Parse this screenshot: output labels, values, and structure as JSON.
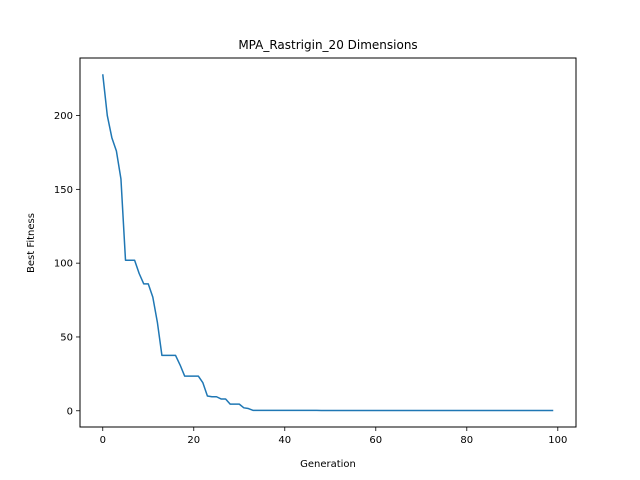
{
  "chart_data": {
    "type": "line",
    "title": "MPA_Rastrigin_20 Dimensions",
    "xlabel": "Generation",
    "ylabel": "Best Fitness",
    "xlim": [
      -5,
      104
    ],
    "ylim": [
      -11,
      239
    ],
    "xticks": [
      0,
      20,
      40,
      60,
      80,
      100
    ],
    "yticks": [
      0,
      50,
      100,
      150,
      200
    ],
    "xtick_labels": [
      "0",
      "20",
      "40",
      "60",
      "80",
      "100"
    ],
    "ytick_labels": [
      "0",
      "50",
      "100",
      "150",
      "200"
    ],
    "grid": false,
    "line_color": "#1f77b4",
    "series": [
      {
        "x": [
          0,
          1,
          2,
          3,
          4,
          5,
          6,
          7,
          8,
          9,
          10,
          11,
          12,
          13,
          14,
          15,
          16,
          17,
          18,
          19,
          20,
          21,
          22,
          23,
          24,
          25,
          26,
          27,
          28,
          29,
          30,
          31,
          32,
          33,
          34,
          35,
          36,
          37,
          38,
          39,
          40,
          41,
          42,
          43,
          44,
          45,
          46,
          47,
          48,
          49,
          50,
          51,
          52,
          53,
          54,
          55,
          56,
          57,
          58,
          59,
          60,
          61,
          62,
          63,
          64,
          65,
          66,
          67,
          68,
          69,
          70,
          71,
          72,
          73,
          74,
          75,
          76,
          77,
          78,
          79,
          80,
          81,
          82,
          83,
          84,
          85,
          86,
          87,
          88,
          89,
          90,
          91,
          92,
          93,
          94,
          95,
          96,
          97,
          98,
          99
        ],
        "values": [
          228,
          200,
          185,
          176,
          157,
          102,
          102,
          102,
          93,
          86,
          86,
          77,
          60,
          37.5,
          37.5,
          37.5,
          37.5,
          31,
          23.5,
          23.5,
          23.5,
          23.5,
          19,
          10,
          9.5,
          9.5,
          8,
          8,
          4.5,
          4.5,
          4.5,
          2,
          1.5,
          0.3,
          0.3,
          0.3,
          0.3,
          0.3,
          0.3,
          0.3,
          0.3,
          0.3,
          0.3,
          0.3,
          0.3,
          0.3,
          0.3,
          0.3,
          0.2,
          0.2,
          0.2,
          0.2,
          0.2,
          0.2,
          0.2,
          0.2,
          0.2,
          0.2,
          0.2,
          0.2,
          0.2,
          0.2,
          0.2,
          0.2,
          0.2,
          0.2,
          0.2,
          0.2,
          0.2,
          0.2,
          0.2,
          0.2,
          0.2,
          0.2,
          0.2,
          0.2,
          0.2,
          0.2,
          0.2,
          0.2,
          0.2,
          0.2,
          0.2,
          0.2,
          0.2,
          0.2,
          0.2,
          0.2,
          0.2,
          0.2,
          0.2,
          0.2,
          0.2,
          0.2,
          0.2,
          0.2,
          0.2,
          0.2,
          0.2,
          0.2
        ]
      }
    ]
  }
}
